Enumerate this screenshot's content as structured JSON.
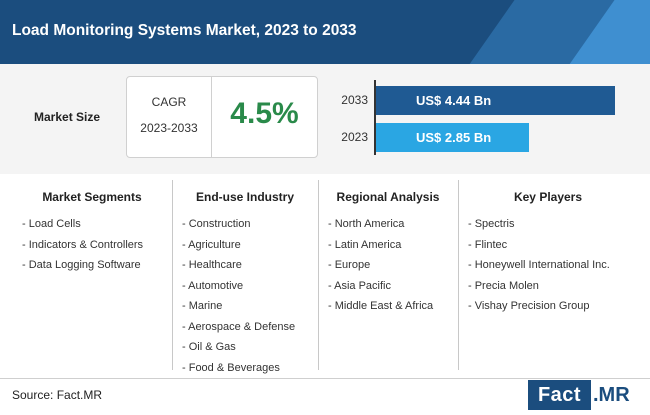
{
  "header": {
    "title": "Load Monitoring Systems Market, 2023 to 2033"
  },
  "market_size": {
    "label": "Market Size",
    "cagr_label": "CAGR",
    "cagr_years": "2023-2033",
    "cagr_value": "4.5%"
  },
  "chart_data": {
    "type": "bar",
    "orientation": "horizontal",
    "categories": [
      "2033",
      "2023"
    ],
    "values": [
      4.44,
      2.85
    ],
    "value_labels": [
      "US$ 4.44 Bn",
      "US$ 2.85 Bn"
    ],
    "colors": [
      "#1f5a93",
      "#2aa6e3"
    ],
    "xlim": [
      0,
      4.44
    ]
  },
  "segments": [
    {
      "heading": "Market Segments",
      "items": [
        "- Load Cells",
        "- Indicators & Controllers",
        "- Data Logging Software"
      ]
    },
    {
      "heading": "End-use Industry",
      "items": [
        "- Construction",
        "- Agriculture",
        "- Healthcare",
        "- Automotive",
        "- Marine",
        "- Aerospace & Defense",
        "- Oil & Gas",
        "- Food & Beverages"
      ]
    },
    {
      "heading": "Regional Analysis",
      "items": [
        "- North America",
        "- Latin America",
        "- Europe",
        "- Asia Pacific",
        "- Middle East & Africa"
      ]
    },
    {
      "heading": "Key Players",
      "items": [
        "- Spectris",
        "- Flintec",
        "- Honeywell International Inc.",
        "- Precia Molen",
        "- Vishay Precision Group"
      ]
    }
  ],
  "footer": {
    "source": "Source: Fact.MR",
    "logo_left": "Fact",
    "logo_right": ".MR"
  }
}
